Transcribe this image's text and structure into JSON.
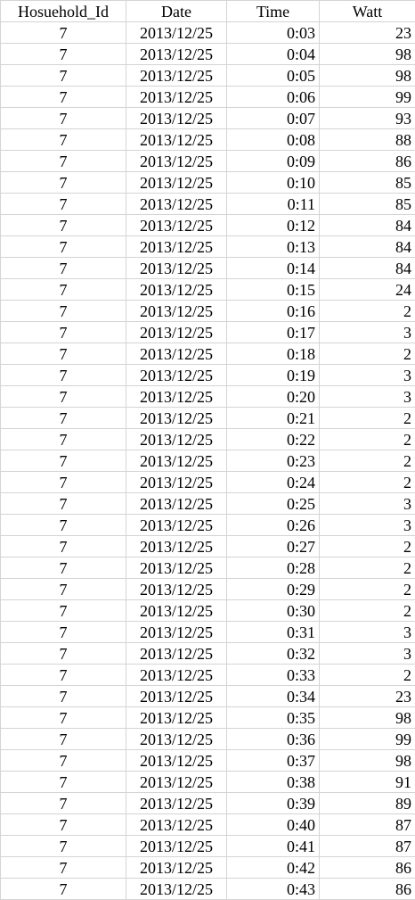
{
  "sheet": {
    "headers": [
      "Hosuehold_Id",
      "Date",
      "Time",
      "Watt"
    ],
    "rows": [
      [
        "7",
        "2013/12/25",
        "0:03",
        "23"
      ],
      [
        "7",
        "2013/12/25",
        "0:04",
        "98"
      ],
      [
        "7",
        "2013/12/25",
        "0:05",
        "98"
      ],
      [
        "7",
        "2013/12/25",
        "0:06",
        "99"
      ],
      [
        "7",
        "2013/12/25",
        "0:07",
        "93"
      ],
      [
        "7",
        "2013/12/25",
        "0:08",
        "88"
      ],
      [
        "7",
        "2013/12/25",
        "0:09",
        "86"
      ],
      [
        "7",
        "2013/12/25",
        "0:10",
        "85"
      ],
      [
        "7",
        "2013/12/25",
        "0:11",
        "85"
      ],
      [
        "7",
        "2013/12/25",
        "0:12",
        "84"
      ],
      [
        "7",
        "2013/12/25",
        "0:13",
        "84"
      ],
      [
        "7",
        "2013/12/25",
        "0:14",
        "84"
      ],
      [
        "7",
        "2013/12/25",
        "0:15",
        "24"
      ],
      [
        "7",
        "2013/12/25",
        "0:16",
        "2"
      ],
      [
        "7",
        "2013/12/25",
        "0:17",
        "3"
      ],
      [
        "7",
        "2013/12/25",
        "0:18",
        "2"
      ],
      [
        "7",
        "2013/12/25",
        "0:19",
        "3"
      ],
      [
        "7",
        "2013/12/25",
        "0:20",
        "3"
      ],
      [
        "7",
        "2013/12/25",
        "0:21",
        "2"
      ],
      [
        "7",
        "2013/12/25",
        "0:22",
        "2"
      ],
      [
        "7",
        "2013/12/25",
        "0:23",
        "2"
      ],
      [
        "7",
        "2013/12/25",
        "0:24",
        "2"
      ],
      [
        "7",
        "2013/12/25",
        "0:25",
        "3"
      ],
      [
        "7",
        "2013/12/25",
        "0:26",
        "3"
      ],
      [
        "7",
        "2013/12/25",
        "0:27",
        "2"
      ],
      [
        "7",
        "2013/12/25",
        "0:28",
        "2"
      ],
      [
        "7",
        "2013/12/25",
        "0:29",
        "2"
      ],
      [
        "7",
        "2013/12/25",
        "0:30",
        "2"
      ],
      [
        "7",
        "2013/12/25",
        "0:31",
        "3"
      ],
      [
        "7",
        "2013/12/25",
        "0:32",
        "3"
      ],
      [
        "7",
        "2013/12/25",
        "0:33",
        "2"
      ],
      [
        "7",
        "2013/12/25",
        "0:34",
        "23"
      ],
      [
        "7",
        "2013/12/25",
        "0:35",
        "98"
      ],
      [
        "7",
        "2013/12/25",
        "0:36",
        "99"
      ],
      [
        "7",
        "2013/12/25",
        "0:37",
        "98"
      ],
      [
        "7",
        "2013/12/25",
        "0:38",
        "91"
      ],
      [
        "7",
        "2013/12/25",
        "0:39",
        "89"
      ],
      [
        "7",
        "2013/12/25",
        "0:40",
        "87"
      ],
      [
        "7",
        "2013/12/25",
        "0:41",
        "87"
      ],
      [
        "7",
        "2013/12/25",
        "0:42",
        "86"
      ],
      [
        "7",
        "2013/12/25",
        "0:43",
        "86"
      ]
    ]
  }
}
